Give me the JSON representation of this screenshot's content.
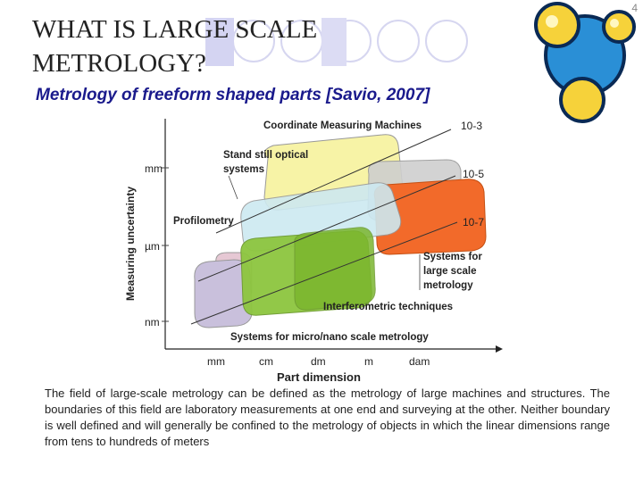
{
  "slide": {
    "title": "WHAT IS LARGE SCALE METROLOGY?",
    "subtitle": "Metrology of freeform shaped parts [Savio, 2007]",
    "page_number": "4",
    "body_text": "The field of large-scale metrology can be defined as the metrology of large machines and structures. The boundaries of this field are laboratory measurements at one end and surveying at the other. Neither boundary is well defined and will generally be confined to the metrology of objects in which the linear dimensions range from tens to hundreds of meters"
  },
  "diagram": {
    "y_axis_label": "Measuring uncertainty",
    "x_axis_label": "Part dimension",
    "y_ticks": [
      "mm",
      "µm",
      "nm"
    ],
    "x_ticks": [
      "mm",
      "cm",
      "dm",
      "m",
      "dam"
    ],
    "uncertainty_ratios": [
      "10-3",
      "10-5",
      "10-7"
    ],
    "regions": {
      "cmm": "Coordinate Measuring Machines",
      "optical_line1": "Stand still optical",
      "optical_line2": "systems",
      "profilometry": "Profilometry",
      "lsm_line1": "Systems for",
      "lsm_line2": "large scale",
      "lsm_line3": "metrology",
      "interferometric": "Interferometric techniques",
      "micro_nano": "Systems for micro/nano scale metrology"
    },
    "colors": {
      "yellow": "#f7f3a6",
      "grey": "#cfcfcf",
      "orange": "#f26a2a",
      "light_blue": "#cde9f1",
      "green": "#8dc63f",
      "pink": "#e6c8d4",
      "lavender": "#c9c0dc"
    }
  }
}
